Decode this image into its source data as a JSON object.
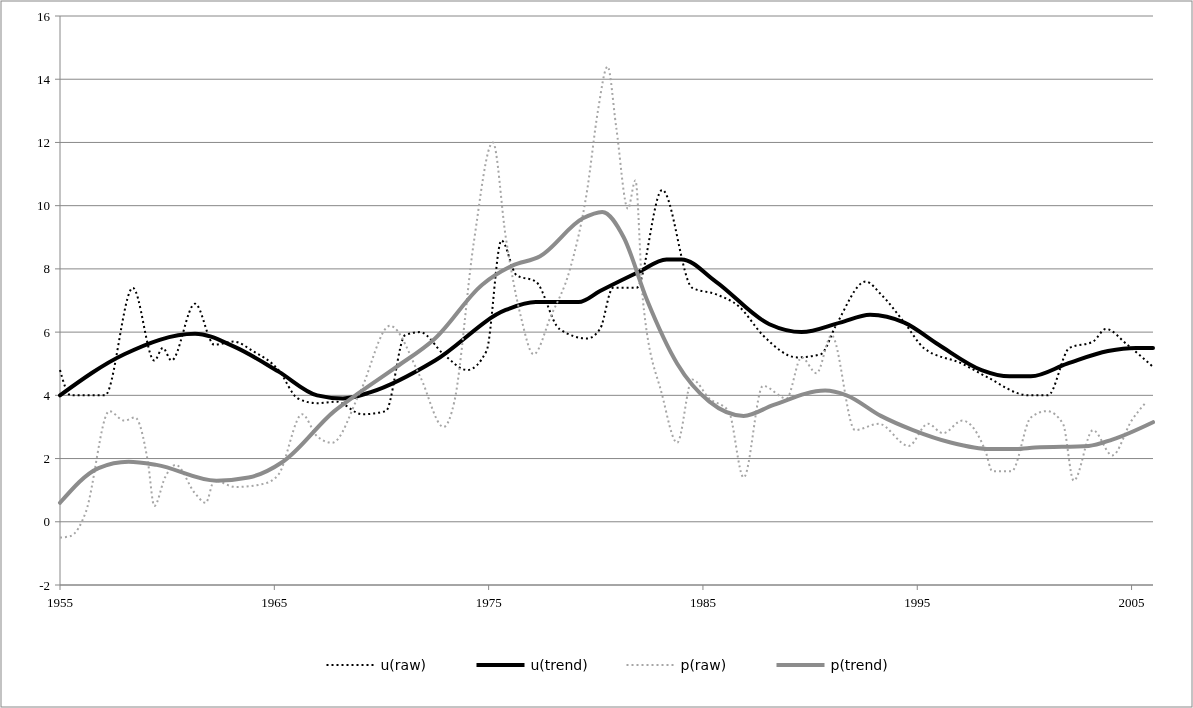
{
  "chart_data": {
    "type": "line",
    "xlim": [
      1955,
      2006
    ],
    "xticks": [
      1955,
      1965,
      1975,
      1985,
      1995,
      2005
    ],
    "ylim": [
      -2,
      16
    ],
    "yticks": [
      -2,
      0,
      2,
      4,
      6,
      8,
      10,
      12,
      14,
      16
    ],
    "grid": "y",
    "legend": "bottom",
    "series": [
      {
        "name": "u(raw)",
        "color": "#000000",
        "line_style": "dotted",
        "x": [
          1955.0,
          1955.5,
          1957.1,
          1958.4,
          1959.4,
          1959.8,
          1960.2,
          1961.3,
          1962.2,
          1963.1,
          1964.0,
          1965.2,
          1966.1,
          1967.0,
          1967.9,
          1969.1,
          1970.2,
          1971.1,
          1971.8,
          1972.9,
          1974.0,
          1974.9,
          1975.6,
          1976.3,
          1977.2,
          1978.3,
          1979.6,
          1980.2,
          1980.8,
          1981.9,
          1983.1,
          1984.5,
          1985.6,
          1986.7,
          1987.8,
          1989.4,
          1990.5,
          1991.2,
          1992.6,
          1993.3,
          1994.4,
          1995.3,
          1997.1,
          1998.2,
          2000.2,
          2001.1,
          2002.1,
          2003.2,
          2003.8,
          2004.8,
          2006.0
        ],
        "values": [
          4.8,
          4.0,
          4.0,
          7.4,
          5.1,
          5.5,
          5.1,
          6.9,
          5.6,
          5.7,
          5.4,
          4.8,
          3.9,
          3.75,
          3.8,
          3.4,
          3.5,
          5.9,
          6.0,
          5.3,
          4.8,
          5.4,
          8.9,
          7.8,
          7.6,
          6.1,
          5.8,
          6.1,
          7.4,
          7.4,
          10.5,
          7.4,
          7.2,
          6.8,
          5.9,
          5.2,
          5.3,
          6.2,
          7.6,
          7.2,
          6.3,
          5.5,
          5.0,
          4.6,
          4.0,
          4.0,
          5.5,
          5.7,
          6.1,
          5.6,
          4.9
        ]
      },
      {
        "name": "u(trend)",
        "color": "#000000",
        "line_style": "solid",
        "x": [
          1955.0,
          1958.0,
          1961.3,
          1963.1,
          1965.2,
          1967.0,
          1968.2,
          1969.5,
          1972.5,
          1975.8,
          1977.2,
          1979.2,
          1980.2,
          1982.0,
          1983.3,
          1984.0,
          1985.6,
          1988.1,
          1989.6,
          1991.4,
          1992.8,
          1994.4,
          1996.0,
          1998.0,
          1999.3,
          2000.3,
          2002.0,
          2003.9,
          2005.2,
          2006.0
        ],
        "values": [
          4.0,
          5.3,
          5.95,
          5.55,
          4.75,
          4.0,
          3.9,
          4.1,
          5.1,
          6.7,
          6.95,
          6.95,
          7.3,
          7.9,
          8.3,
          8.3,
          7.6,
          6.25,
          6.0,
          6.3,
          6.55,
          6.3,
          5.6,
          4.8,
          4.6,
          4.6,
          5.0,
          5.4,
          5.5,
          5.5
        ]
      },
      {
        "name": "p(raw)",
        "color": "#a6a6a6",
        "line_style": "dotted",
        "x": [
          1955.0,
          1955.5,
          1956.2,
          1957.3,
          1958.0,
          1958.5,
          1959.1,
          1959.4,
          1959.9,
          1960.4,
          1961.3,
          1961.8,
          1962.2,
          1963.2,
          1964.5,
          1965.2,
          1966.3,
          1967.0,
          1967.7,
          1969.0,
          1970.4,
          1971.8,
          1972.9,
          1973.4,
          1974.3,
          1975.2,
          1975.8,
          1976.5,
          1977.1,
          1977.9,
          1978.8,
          1979.6,
          1980.1,
          1980.55,
          1980.95,
          1981.5,
          1981.85,
          1982.2,
          1983.1,
          1983.8,
          1984.5,
          1985.3,
          1986.2,
          1986.9,
          1987.8,
          1988.9,
          1989.6,
          1990.3,
          1991.0,
          1992.1,
          1993.2,
          1994.6,
          1995.5,
          1996.2,
          1997.1,
          1998.2,
          1998.5,
          1999.4,
          2000.3,
          2001.05,
          2001.8,
          2002.3,
          2003.2,
          2004.1,
          2005.0,
          2005.7
        ],
        "values": [
          -0.5,
          -0.45,
          0.3,
          3.5,
          3.2,
          3.3,
          1.9,
          0.5,
          1.4,
          1.8,
          0.9,
          0.6,
          1.3,
          1.1,
          1.2,
          1.5,
          3.4,
          2.7,
          2.5,
          4.1,
          6.2,
          4.6,
          3.0,
          3.8,
          8.8,
          12.0,
          9.0,
          6.5,
          5.3,
          6.5,
          8.0,
          10.5,
          13.0,
          14.4,
          12.5,
          9.9,
          10.8,
          7.0,
          4.0,
          2.5,
          4.5,
          3.9,
          3.5,
          1.4,
          4.3,
          3.9,
          5.2,
          4.7,
          5.9,
          2.9,
          3.1,
          2.4,
          3.1,
          2.8,
          3.2,
          2.2,
          1.6,
          1.6,
          3.3,
          3.5,
          3.1,
          1.3,
          2.9,
          2.1,
          3.2,
          3.8
        ]
      },
      {
        "name": "p(trend)",
        "color": "#8c8c8c",
        "line_style": "solid",
        "x": [
          1955.0,
          1956.8,
          1958.2,
          1959.5,
          1962.3,
          1963.8,
          1965.4,
          1967.8,
          1969.0,
          1970.7,
          1972.5,
          1974.7,
          1976.1,
          1977.4,
          1979.4,
          1980.3,
          1981.3,
          1982.4,
          1983.8,
          1985.3,
          1986.9,
          1988.3,
          1990.7,
          1991.7,
          1993.3,
          1994.8,
          1996.6,
          1998.4,
          1999.6,
          2000.5,
          2003.0,
          2004.1,
          2006.0
        ],
        "values": [
          0.6,
          1.7,
          1.9,
          1.8,
          1.3,
          1.4,
          1.9,
          3.5,
          4.1,
          4.9,
          5.8,
          7.5,
          8.1,
          8.4,
          9.6,
          9.8,
          9.0,
          7.0,
          5.0,
          3.8,
          3.35,
          3.7,
          4.15,
          4.0,
          3.35,
          2.9,
          2.5,
          2.3,
          2.3,
          2.35,
          2.4,
          2.6,
          3.15
        ]
      }
    ]
  }
}
